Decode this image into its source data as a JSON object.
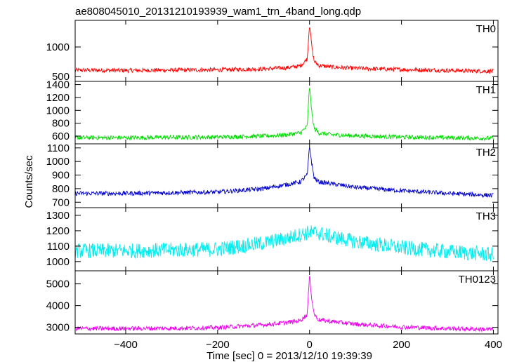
{
  "chart_data": {
    "type": "line",
    "title": "ae808045010_20131210193939_wam1_trn_4band_long.qdp",
    "xlabel": "Time [sec] 0 = 2013/12/10 19:39:39",
    "ylabel": "Counts/sec",
    "xlim": [
      -510,
      410
    ],
    "x_ticks": [
      -400,
      -200,
      0,
      200,
      400
    ],
    "panels": [
      {
        "name": "TH0",
        "color": "#ff0000",
        "ylim": [
          420,
          1450
        ],
        "y_ticks": [
          500,
          1000
        ],
        "series": [
          {
            "x": -510,
            "y": 610
          },
          {
            "x": -400,
            "y": 605
          },
          {
            "x": -300,
            "y": 610
          },
          {
            "x": -200,
            "y": 615
          },
          {
            "x": -100,
            "y": 630
          },
          {
            "x": -50,
            "y": 650
          },
          {
            "x": -20,
            "y": 680
          },
          {
            "x": -5,
            "y": 800
          },
          {
            "x": 0,
            "y": 1400
          },
          {
            "x": 5,
            "y": 1000
          },
          {
            "x": 10,
            "y": 760
          },
          {
            "x": 20,
            "y": 690
          },
          {
            "x": 50,
            "y": 660
          },
          {
            "x": 100,
            "y": 640
          },
          {
            "x": 200,
            "y": 620
          },
          {
            "x": 300,
            "y": 605
          },
          {
            "x": 400,
            "y": 590
          }
        ]
      },
      {
        "name": "TH1",
        "color": "#00dd00",
        "ylim": [
          480,
          1450
        ],
        "y_ticks": [
          600,
          800,
          1000,
          1200,
          1400
        ],
        "series": [
          {
            "x": -510,
            "y": 575
          },
          {
            "x": -400,
            "y": 575
          },
          {
            "x": -300,
            "y": 580
          },
          {
            "x": -200,
            "y": 585
          },
          {
            "x": -100,
            "y": 600
          },
          {
            "x": -50,
            "y": 620
          },
          {
            "x": -20,
            "y": 650
          },
          {
            "x": -5,
            "y": 750
          },
          {
            "x": 0,
            "y": 1400
          },
          {
            "x": 5,
            "y": 950
          },
          {
            "x": 10,
            "y": 720
          },
          {
            "x": 20,
            "y": 650
          },
          {
            "x": 50,
            "y": 620
          },
          {
            "x": 100,
            "y": 605
          },
          {
            "x": 200,
            "y": 585
          },
          {
            "x": 300,
            "y": 575
          },
          {
            "x": 400,
            "y": 565
          }
        ]
      },
      {
        "name": "TH2",
        "color": "#0000cc",
        "ylim": [
          660,
          1130
        ],
        "y_ticks": [
          700,
          800,
          900,
          1000,
          1100
        ],
        "series": [
          {
            "x": -510,
            "y": 765
          },
          {
            "x": -400,
            "y": 765
          },
          {
            "x": -300,
            "y": 770
          },
          {
            "x": -200,
            "y": 775
          },
          {
            "x": -100,
            "y": 800
          },
          {
            "x": -50,
            "y": 830
          },
          {
            "x": -20,
            "y": 850
          },
          {
            "x": -5,
            "y": 900
          },
          {
            "x": 0,
            "y": 1115
          },
          {
            "x": 5,
            "y": 980
          },
          {
            "x": 10,
            "y": 880
          },
          {
            "x": 20,
            "y": 850
          },
          {
            "x": 50,
            "y": 835
          },
          {
            "x": 100,
            "y": 810
          },
          {
            "x": 200,
            "y": 785
          },
          {
            "x": 300,
            "y": 765
          },
          {
            "x": 400,
            "y": 750
          }
        ]
      },
      {
        "name": "TH3",
        "color": "#00eeee",
        "ylim": [
          940,
          1350
        ],
        "y_ticks": [
          1000,
          1100,
          1200,
          1300
        ],
        "series": [
          {
            "x": -510,
            "y": 1070
          },
          {
            "x": -400,
            "y": 1070
          },
          {
            "x": -300,
            "y": 1075
          },
          {
            "x": -200,
            "y": 1080
          },
          {
            "x": -100,
            "y": 1120
          },
          {
            "x": -50,
            "y": 1150
          },
          {
            "x": -20,
            "y": 1175
          },
          {
            "x": 0,
            "y": 1190
          },
          {
            "x": 20,
            "y": 1185
          },
          {
            "x": 50,
            "y": 1160
          },
          {
            "x": 100,
            "y": 1130
          },
          {
            "x": 200,
            "y": 1090
          },
          {
            "x": 300,
            "y": 1065
          },
          {
            "x": 400,
            "y": 1045
          }
        ]
      },
      {
        "name": "TH0123",
        "color": "#ee00ee",
        "ylim": [
          2700,
          5600
        ],
        "y_ticks": [
          3000,
          4000,
          5000
        ],
        "series": [
          {
            "x": -510,
            "y": 2950
          },
          {
            "x": -400,
            "y": 2950
          },
          {
            "x": -300,
            "y": 2960
          },
          {
            "x": -200,
            "y": 2990
          },
          {
            "x": -100,
            "y": 3120
          },
          {
            "x": -50,
            "y": 3220
          },
          {
            "x": -20,
            "y": 3320
          },
          {
            "x": -5,
            "y": 3600
          },
          {
            "x": 0,
            "y": 5400
          },
          {
            "x": 5,
            "y": 4300
          },
          {
            "x": 10,
            "y": 3600
          },
          {
            "x": 20,
            "y": 3350
          },
          {
            "x": 50,
            "y": 3270
          },
          {
            "x": 100,
            "y": 3150
          },
          {
            "x": 200,
            "y": 3020
          },
          {
            "x": 300,
            "y": 2950
          },
          {
            "x": 400,
            "y": 2910
          }
        ]
      }
    ]
  }
}
